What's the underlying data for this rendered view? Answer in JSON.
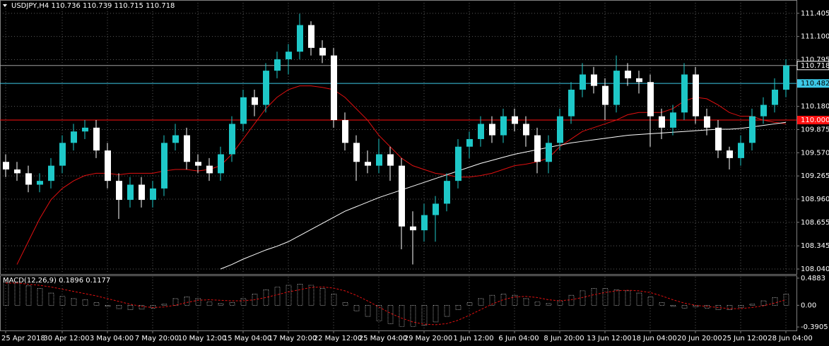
{
  "chart_data": [
    {
      "type": "candlestick",
      "title": "USDJPY,H4  110.736 110.739 110.715 110.718",
      "x": [
        "25 Apr 2018",
        null,
        null,
        null,
        null,
        "30 Apr 12:00",
        null,
        null,
        null,
        "3 May 04:00",
        null,
        null,
        null,
        "7 May 20:00",
        null,
        null,
        null,
        "10 May 12:00",
        null,
        null,
        null,
        "15 May 04:00",
        null,
        null,
        null,
        "17 May 20:00",
        null,
        null,
        null,
        "22 May 12:00",
        null,
        null,
        null,
        "25 May 04:00",
        null,
        null,
        null,
        "29 May 20:00",
        null,
        null,
        null,
        "1 Jun 12:00",
        null,
        null,
        null,
        "6 Jun 04:00",
        null,
        null,
        null,
        "8 Jun 20:00",
        null,
        null,
        null,
        "13 Jun 12:00",
        null,
        null,
        null,
        "18 Jun 04:00",
        null,
        null,
        null,
        "20 Jun 20:00",
        null,
        null,
        null,
        "25 Jun 12:00",
        null,
        null,
        null,
        "28 Jun 04:00"
      ],
      "open": [
        109.45,
        109.35,
        109.3,
        109.15,
        109.2,
        109.4,
        109.7,
        109.85,
        109.9,
        109.6,
        109.2,
        108.95,
        109.15,
        108.95,
        109.1,
        109.7,
        109.8,
        109.45,
        109.4,
        109.3,
        109.55,
        109.95,
        110.3,
        110.2,
        110.65,
        110.8,
        110.9,
        111.25,
        110.95,
        110.85,
        110.0,
        109.7,
        109.45,
        109.4,
        109.55,
        109.4,
        108.6,
        108.55,
        108.75,
        108.9,
        109.2,
        109.65,
        109.75,
        109.95,
        109.8,
        110.05,
        109.95,
        109.8,
        109.45,
        109.7,
        110.05,
        110.4,
        110.6,
        110.45,
        110.2,
        110.65,
        110.55,
        110.5,
        110.05,
        109.9,
        110.1,
        110.6,
        110.05,
        109.9,
        109.6,
        109.5,
        109.7,
        110.05,
        110.2,
        110.4
      ],
      "high": [
        109.55,
        109.45,
        109.4,
        109.3,
        109.5,
        109.8,
        109.95,
        110.0,
        110.0,
        109.7,
        109.3,
        109.25,
        109.25,
        109.2,
        109.8,
        109.95,
        109.9,
        109.55,
        109.5,
        109.65,
        110.05,
        110.4,
        110.4,
        110.75,
        110.9,
        111.0,
        111.4,
        111.3,
        111.05,
        110.95,
        110.1,
        109.8,
        109.6,
        109.75,
        109.65,
        109.5,
        108.8,
        108.9,
        109.0,
        109.3,
        109.75,
        109.85,
        110.05,
        110.05,
        110.15,
        110.15,
        110.05,
        109.9,
        109.8,
        110.15,
        110.5,
        110.75,
        110.7,
        110.55,
        110.85,
        110.75,
        110.65,
        110.6,
        110.15,
        110.2,
        110.75,
        110.7,
        110.15,
        110.0,
        109.65,
        109.8,
        110.15,
        110.3,
        110.55,
        110.8
      ],
      "low": [
        109.25,
        109.2,
        109.05,
        109.05,
        109.1,
        109.3,
        109.6,
        109.75,
        109.5,
        109.1,
        108.7,
        108.85,
        108.85,
        108.85,
        109.0,
        109.6,
        109.35,
        109.3,
        109.2,
        109.2,
        109.45,
        109.85,
        110.05,
        110.1,
        110.55,
        110.6,
        110.8,
        110.85,
        110.75,
        109.9,
        109.6,
        109.2,
        109.3,
        109.3,
        109.2,
        108.3,
        108.1,
        108.4,
        108.4,
        108.8,
        109.1,
        109.5,
        109.65,
        109.7,
        109.7,
        109.85,
        109.65,
        109.3,
        109.3,
        109.6,
        109.95,
        110.3,
        110.35,
        110.0,
        110.1,
        110.45,
        110.35,
        109.65,
        109.75,
        109.8,
        110.0,
        109.95,
        109.8,
        109.5,
        109.35,
        109.4,
        109.6,
        109.95,
        110.1,
        110.3
      ],
      "close": [
        109.35,
        109.3,
        109.15,
        109.2,
        109.4,
        109.7,
        109.85,
        109.9,
        109.6,
        109.2,
        108.95,
        109.15,
        108.95,
        109.1,
        109.7,
        109.8,
        109.45,
        109.4,
        109.3,
        109.55,
        109.95,
        110.3,
        110.2,
        110.65,
        110.8,
        110.9,
        111.25,
        110.95,
        110.85,
        110.0,
        109.7,
        109.45,
        109.4,
        109.55,
        109.4,
        108.6,
        108.55,
        108.75,
        108.9,
        109.2,
        109.65,
        109.75,
        109.95,
        109.8,
        110.05,
        109.95,
        109.8,
        109.45,
        109.7,
        110.05,
        110.4,
        110.6,
        110.45,
        110.2,
        110.65,
        110.55,
        110.5,
        110.05,
        109.9,
        110.1,
        110.6,
        110.05,
        109.9,
        109.6,
        109.5,
        109.7,
        110.05,
        110.2,
        110.4,
        110.718
      ],
      "up_color": "#1ec8c8",
      "down_color": "#ffffff",
      "lines": [
        {
          "color": "#e01010",
          "values": [
            null,
            108.1,
            108.4,
            108.7,
            108.95,
            109.1,
            109.2,
            109.27,
            109.3,
            109.3,
            109.28,
            109.3,
            109.3,
            109.3,
            109.33,
            109.35,
            109.35,
            109.33,
            109.35,
            109.4,
            109.55,
            109.75,
            109.95,
            110.15,
            110.3,
            110.4,
            110.45,
            110.45,
            110.43,
            110.4,
            110.3,
            110.15,
            110.0,
            109.8,
            109.65,
            109.5,
            109.4,
            109.35,
            109.3,
            109.28,
            109.25,
            109.25,
            109.27,
            109.3,
            109.35,
            109.4,
            109.42,
            109.45,
            109.5,
            109.65,
            109.75,
            109.85,
            109.9,
            109.95,
            110.0,
            110.07,
            110.1,
            110.1,
            110.1,
            110.15,
            110.25,
            110.3,
            110.28,
            110.2,
            110.1,
            110.05,
            110.05,
            110.0,
            109.97,
            109.95
          ]
        },
        {
          "color": "#ffffff",
          "values": [
            null,
            null,
            null,
            null,
            null,
            null,
            null,
            null,
            null,
            null,
            null,
            null,
            null,
            null,
            null,
            null,
            null,
            null,
            null,
            108.04,
            108.1,
            108.17,
            108.23,
            108.29,
            108.34,
            108.4,
            108.48,
            108.56,
            108.64,
            108.72,
            108.8,
            108.86,
            108.92,
            108.98,
            109.03,
            109.08,
            109.13,
            109.18,
            109.23,
            109.28,
            109.33,
            109.38,
            109.43,
            109.47,
            109.51,
            109.55,
            109.58,
            109.61,
            109.64,
            109.67,
            109.7,
            109.72,
            109.74,
            109.76,
            109.78,
            109.8,
            109.81,
            109.82,
            109.83,
            109.84,
            109.85,
            109.86,
            109.87,
            109.88,
            109.88,
            109.89,
            109.91,
            109.93,
            109.95,
            109.97
          ]
        }
      ],
      "hlines": [
        {
          "value": 110.482,
          "color": "#3cc8e6"
        },
        {
          "value": {
            "value": 110,
            "label": "110.000"
          },
          "color": "#ff1010"
        }
      ],
      "last_price": 110.718,
      "ylim": [
        107.975,
        111.58
      ],
      "yticks": [
        111.405,
        {
          "value": 111.1,
          "label": "111.100"
        },
        110.795,
        {
          "value": 110.18,
          "label": "110.180"
        },
        109.875,
        {
          "value": 109.57,
          "label": "109.570"
        },
        109.265,
        {
          "value": 108.96,
          "label": "108.960"
        },
        108.655,
        108.345,
        {
          "value": 108.04,
          "label": "108.040"
        }
      ],
      "grid": true
    },
    {
      "type": "macd",
      "title": "MACD(12,26,9) 0.1896 0.1177",
      "histogram": [
        0.42,
        0.4,
        0.35,
        0.3,
        0.22,
        0.16,
        0.12,
        0.1,
        0.05,
        -0.02,
        -0.06,
        -0.08,
        -0.07,
        -0.05,
        0.02,
        0.12,
        0.15,
        0.12,
        0.06,
        0.03,
        0.05,
        0.12,
        0.2,
        0.28,
        0.33,
        0.36,
        0.38,
        0.36,
        0.3,
        0.2,
        0.05,
        -0.1,
        -0.2,
        -0.28,
        -0.33,
        -0.38,
        -0.38,
        -0.36,
        -0.3,
        -0.2,
        -0.08,
        0.05,
        0.12,
        0.18,
        0.2,
        0.18,
        0.12,
        0.06,
        0.03,
        0.08,
        0.18,
        0.26,
        0.3,
        0.3,
        0.28,
        0.26,
        0.22,
        0.15,
        0.05,
        -0.02,
        -0.05,
        -0.03,
        -0.05,
        -0.08,
        -0.08,
        -0.04,
        0.02,
        0.08,
        0.14,
        0.2
      ],
      "signal": [
        0.4,
        0.4,
        0.38,
        0.36,
        0.33,
        0.29,
        0.25,
        0.21,
        0.17,
        0.12,
        0.07,
        0.02,
        -0.02,
        -0.04,
        -0.03,
        0.0,
        0.05,
        0.09,
        0.1,
        0.09,
        0.08,
        0.08,
        0.1,
        0.14,
        0.19,
        0.24,
        0.28,
        0.32,
        0.33,
        0.31,
        0.26,
        0.18,
        0.08,
        -0.03,
        -0.14,
        -0.23,
        -0.3,
        -0.34,
        -0.35,
        -0.33,
        -0.27,
        -0.18,
        -0.08,
        0.02,
        0.1,
        0.15,
        0.16,
        0.14,
        0.1,
        0.08,
        0.1,
        0.14,
        0.19,
        0.23,
        0.26,
        0.27,
        0.26,
        0.23,
        0.17,
        0.1,
        0.04,
        0.0,
        -0.02,
        -0.04,
        -0.06,
        -0.06,
        -0.04,
        -0.01,
        0.04,
        0.1
      ],
      "histogram_color": "#ffffff",
      "signal_color": "#e01010",
      "ylim": [
        -0.453,
        0.538
      ],
      "yticks": [
        0.4883,
        {
          "value": 0,
          "label": "0.00"
        },
        -0.3905
      ]
    }
  ]
}
